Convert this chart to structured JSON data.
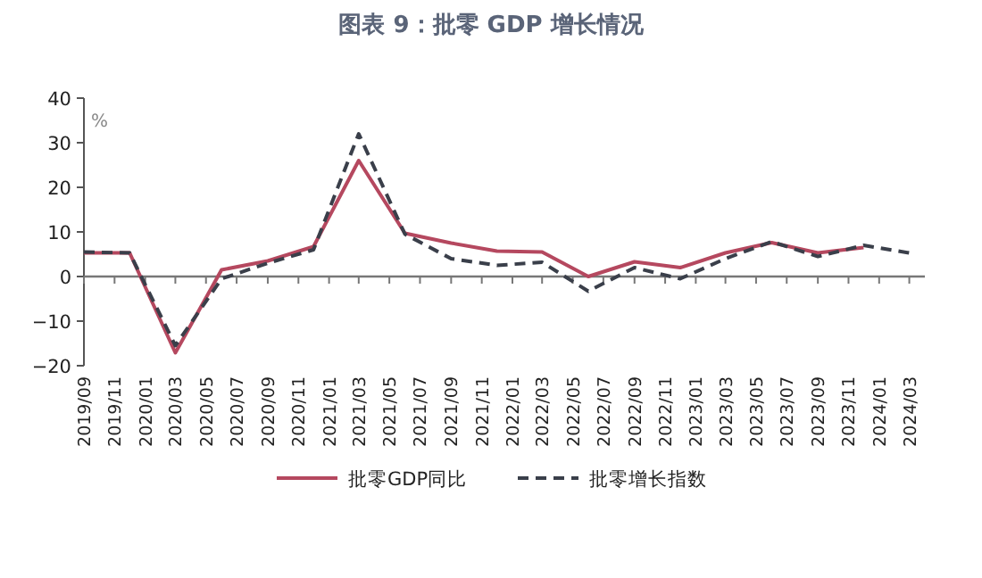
{
  "chart_data": {
    "type": "line",
    "title": "图表 9：批零 GDP 增长情况",
    "ylabel": "%",
    "xlim": [
      "2019-09",
      "2024-04"
    ],
    "ylim": [
      -20,
      40
    ],
    "yticks": [
      -20,
      -10,
      0,
      10,
      20,
      30,
      40
    ],
    "xticks": [
      {
        "value": "2019-09",
        "label": "2019/09"
      },
      {
        "value": "2019-11",
        "label": "2019/11"
      },
      {
        "value": "2020-01",
        "label": "2020/01"
      },
      {
        "value": "2020-03",
        "label": "2020/03"
      },
      {
        "value": "2020-05",
        "label": "2020/05"
      },
      {
        "value": "2020-07",
        "label": "2020/07"
      },
      {
        "value": "2020-09",
        "label": "2020/09"
      },
      {
        "value": "2020-11",
        "label": "2020/11"
      },
      {
        "value": "2021-01",
        "label": "2021/01"
      },
      {
        "value": "2021-03",
        "label": "2021/03"
      },
      {
        "value": "2021-05",
        "label": "2021/05"
      },
      {
        "value": "2021-07",
        "label": "2021/07"
      },
      {
        "value": "2021-09",
        "label": "2021/09"
      },
      {
        "value": "2021-11",
        "label": "2021/11"
      },
      {
        "value": "2022-01",
        "label": "2022/01"
      },
      {
        "value": "2022-03",
        "label": "2022/03"
      },
      {
        "value": "2022-05",
        "label": "2022/05"
      },
      {
        "value": "2022-07",
        "label": "2022/07"
      },
      {
        "value": "2022-09",
        "label": "2022/09"
      },
      {
        "value": "2022-11",
        "label": "2022/11"
      },
      {
        "value": "2023-01",
        "label": "2023/01"
      },
      {
        "value": "2023-03",
        "label": "2023/03"
      },
      {
        "value": "2023-05",
        "label": "2023/05"
      },
      {
        "value": "2023-07",
        "label": "2023/07"
      },
      {
        "value": "2023-09",
        "label": "2023/09"
      },
      {
        "value": "2023-11",
        "label": "2023/11"
      },
      {
        "value": "2024-01",
        "label": "2024/01"
      },
      {
        "value": "2024-03",
        "label": "2024/03"
      }
    ],
    "legend": "bottom",
    "series": [
      {
        "name": "批零GDP同比",
        "color": "#b5485f",
        "line_style": "solid",
        "x": [
          "2019-09",
          "2019-12",
          "2020-03",
          "2020-06",
          "2020-09",
          "2020-12",
          "2021-03",
          "2021-06",
          "2021-09",
          "2021-12",
          "2022-03",
          "2022-06",
          "2022-09",
          "2022-12",
          "2023-03",
          "2023-06",
          "2023-09",
          "2023-12"
        ],
        "values": [
          5.3,
          5.3,
          -17.1,
          1.5,
          3.5,
          6.7,
          26,
          9.7,
          7.5,
          5.7,
          5.5,
          0,
          3.3,
          2,
          5.3,
          7.6,
          5.3,
          6.5
        ]
      },
      {
        "name": "批零增长指数",
        "color": "#3a3f4a",
        "line_style": "dashed",
        "x": [
          "2019-09",
          "2019-12",
          "2020-03",
          "2020-06",
          "2020-09",
          "2020-12",
          "2021-03",
          "2021-06",
          "2021-09",
          "2021-12",
          "2022-03",
          "2022-06",
          "2022-09",
          "2022-12",
          "2023-03",
          "2023-06",
          "2023-09",
          "2023-12",
          "2024-03"
        ],
        "values": [
          5.5,
          5.3,
          -15.5,
          -0.5,
          3,
          6,
          32,
          9.5,
          4,
          2.5,
          3.2,
          -3.3,
          2,
          -0.5,
          4,
          7.8,
          4.5,
          7,
          5.3
        ]
      }
    ]
  }
}
